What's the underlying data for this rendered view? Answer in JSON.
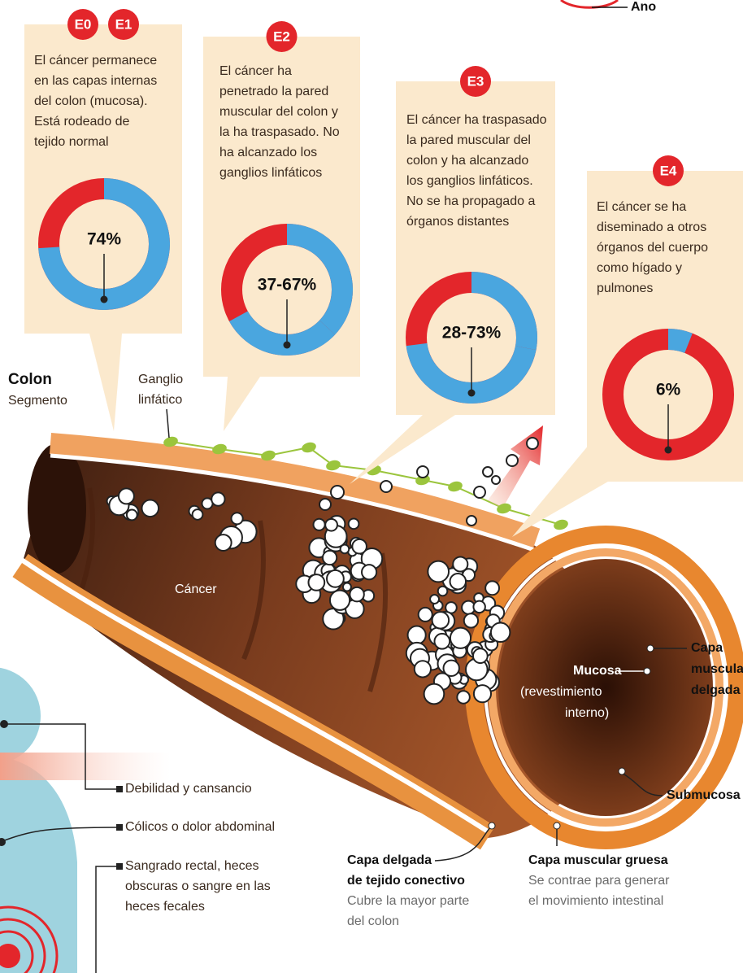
{
  "header": {
    "label": "Ano"
  },
  "stages": [
    {
      "badges": [
        "E0",
        "E1"
      ],
      "text": [
        "El cáncer permanece",
        "en las capas internas",
        "del colon (mucosa).",
        "Está rodeado de",
        "tejido normal"
      ],
      "survival": {
        "label": "74%",
        "value": 74
      }
    },
    {
      "badges": [
        "E2"
      ],
      "text": [
        "El cáncer ha",
        "penetrado la pared",
        "muscular del colon y",
        "la ha traspasado. No",
        "ha alcanzado los",
        "ganglios linfáticos"
      ],
      "survival": {
        "label": "37-67%",
        "low": 37,
        "high": 67
      }
    },
    {
      "badges": [
        "E3"
      ],
      "text": [
        "El cáncer ha traspasado",
        "la pared muscular del",
        "colon y ha alcanzado",
        "los ganglios linfáticos.",
        "No se ha propagado a",
        "órganos distantes"
      ],
      "survival": {
        "label": "28-73%",
        "low": 28,
        "high": 73
      }
    },
    {
      "badges": [
        "E4"
      ],
      "text": [
        "El cáncer se ha",
        "diseminado a otros",
        "órganos del cuerpo",
        "como hígado y",
        "pulmones"
      ],
      "survival": {
        "label": "6%",
        "value": 6
      }
    }
  ],
  "colon": {
    "title": "Colon",
    "subtitle": "Segmento",
    "lymph_node": [
      "Ganglio",
      "linfático"
    ],
    "cancer": "Cáncer",
    "mucosa": "Mucosa",
    "mucosa_note": [
      "(revestimiento",
      "interno)"
    ],
    "thin_muscle": [
      "Capa",
      "muscular",
      "delgada"
    ],
    "submucosa": "Submucosa",
    "connective": {
      "title": [
        "Capa delgada",
        "de tejido conectivo"
      ],
      "text": [
        "Cubre la mayor parte",
        "del colon"
      ]
    },
    "thick_muscle": {
      "title": [
        "Capa muscular gruesa"
      ],
      "text": [
        "Se contrae para generar",
        "el movimiento intestinal"
      ]
    }
  },
  "symptoms": [
    [
      "Debilidad y cansancio"
    ],
    [
      "Cólicos o dolor abdominal"
    ],
    [
      "Sangrado rectal, heces",
      "obscuras o sangre en las",
      "heces fecales"
    ]
  ]
}
